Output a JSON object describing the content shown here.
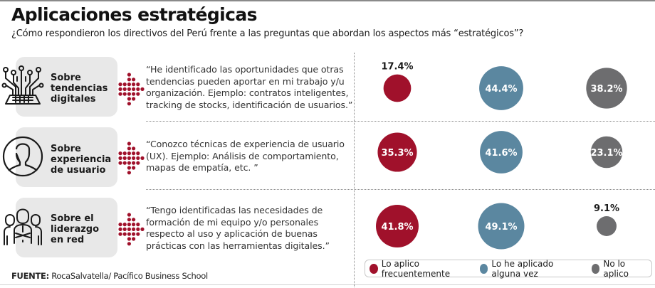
{
  "header": {
    "title": "Aplicaciones estratégicas",
    "subtitle": "¿Cómo respondieron los directivos del Perú frente a las preguntas que abordan los aspectos más “estratégicos”?"
  },
  "rows": [
    {
      "icon": "digital-circuit-icon",
      "label_lines": [
        "Sobre",
        "tendencias",
        "digitales"
      ],
      "quote_lines": [
        "“He identificado las oportunidades que otras",
        "tendencias pueden aportar en mi trabajo y/u",
        "organización. Ejemplo: contratos inteligentes,",
        "tracking de stocks, identificación de usuarios.”"
      ]
    },
    {
      "icon": "user-profile-icon",
      "label_lines": [
        "Sobre",
        "experiencia",
        "de usuario"
      ],
      "quote_lines": [
        "“Conozco técnicas de experiencia de usuario",
        "(UX). Ejemplo: Análisis de comportamiento,",
        "mapas de empatía, etc. ”"
      ]
    },
    {
      "icon": "team-leaders-icon",
      "label_lines": [
        "Sobre el",
        "liderazgo",
        "en red"
      ],
      "quote_lines": [
        "“Tengo identificadas las necesidades de",
        "formación de mi equipo y/o personales",
        "respecto al uso y aplicación de buenas",
        "prácticas con las herramientas digitales.”"
      ]
    }
  ],
  "colors": {
    "frequent": "#a0112b",
    "sometimes": "#5b87a0",
    "never": "#6d6d6f",
    "panel": "#e8e8e8",
    "label_light": "#ffffff",
    "label_dark": "#1a1a1a"
  },
  "chart_data": {
    "type": "bubble",
    "title": "Aplicaciones estratégicas",
    "categories": [
      "Sobre tendencias digitales",
      "Sobre experiencia de usuario",
      "Sobre el liderazgo en red"
    ],
    "series": [
      {
        "name": "Lo aplico frecuentemente",
        "color": "#a0112b",
        "values": [
          17.4,
          35.3,
          41.8
        ]
      },
      {
        "name": "Lo he aplicado alguna vez",
        "color": "#5b87a0",
        "values": [
          44.4,
          41.6,
          49.1
        ]
      },
      {
        "name": "No lo aplico",
        "color": "#6d6d6f",
        "values": [
          38.2,
          23.1,
          9.1
        ]
      }
    ],
    "value_format": "{v}%",
    "legend": "bottom-right"
  },
  "legend": [
    {
      "label": "Lo aplico frecuentemente",
      "color": "#a0112b"
    },
    {
      "label": "Lo he aplicado alguna vez",
      "color": "#5b87a0"
    },
    {
      "label": "No lo aplico",
      "color": "#6d6d6f"
    }
  ],
  "source": {
    "prefix": "FUENTE:",
    "text": " RocaSalvatella/ Pacífico Business School"
  }
}
